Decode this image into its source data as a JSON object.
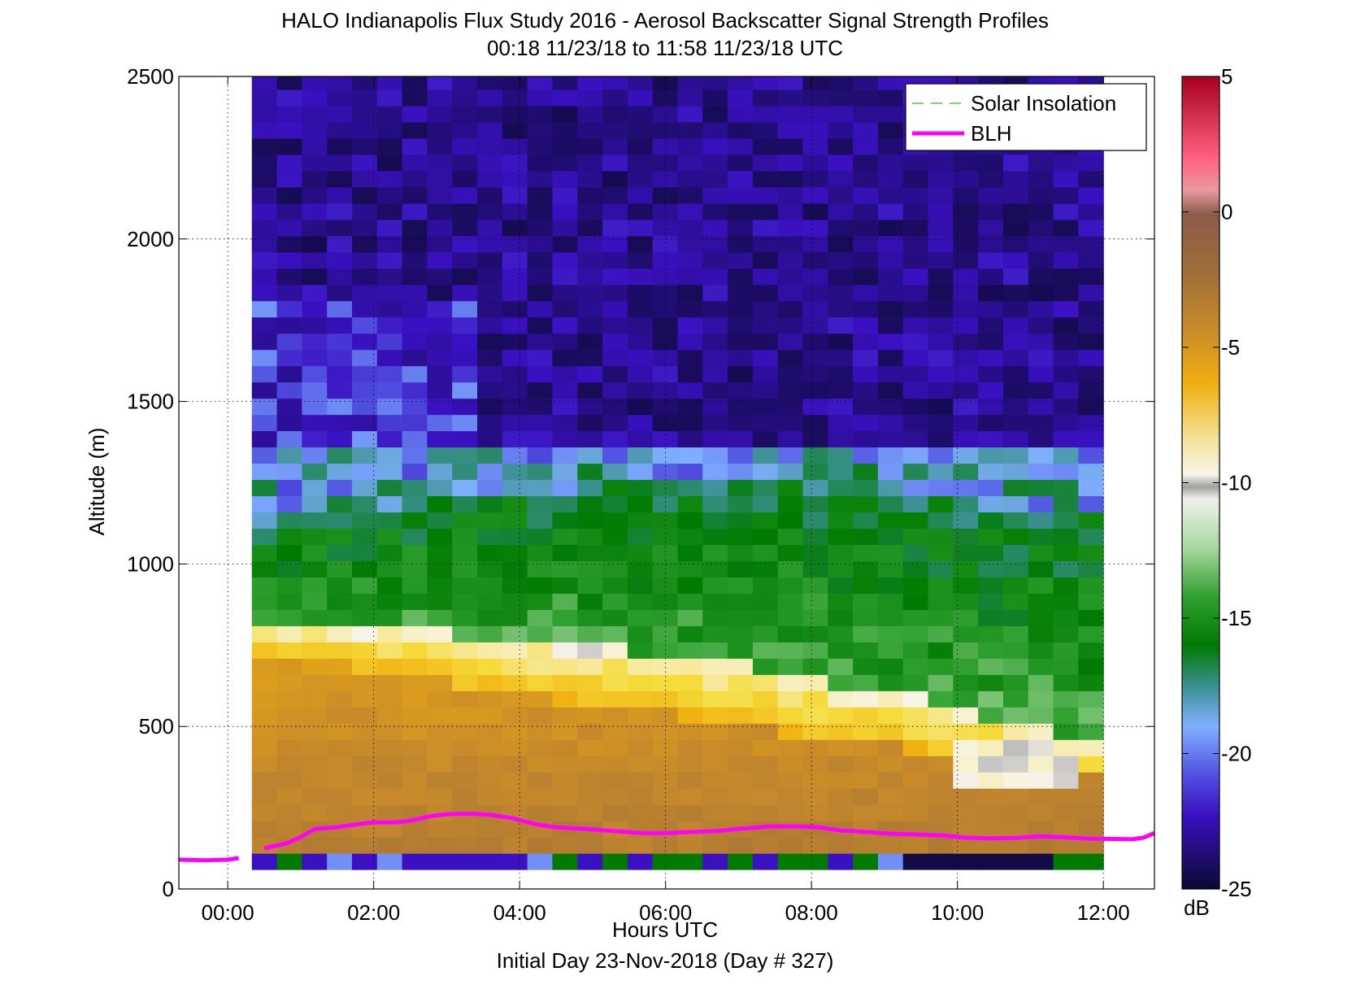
{
  "chart_data": {
    "type": "heatmap",
    "title": "HALO Indianapolis Flux Study 2016 - Aerosol Backscatter Signal Strength Profiles",
    "subtitle": "00:18 11/23/18 to 11:58 11/23/18  UTC",
    "xlabel": "Hours UTC",
    "xlabel_secondary": "Initial Day 23-Nov-2018 (Day # 327)",
    "ylabel": "Altitude (m)",
    "xlim": [
      -0.67,
      12.7
    ],
    "ylim": [
      0,
      2500
    ],
    "x_ticks": [
      0,
      2,
      4,
      6,
      8,
      10,
      12
    ],
    "x_tick_labels": [
      "00:00",
      "02:00",
      "04:00",
      "06:00",
      "08:00",
      "10:00",
      "12:00"
    ],
    "y_ticks": [
      0,
      500,
      1000,
      1500,
      2000,
      2500
    ],
    "y_tick_labels": [
      "0",
      "500",
      "1000",
      "1500",
      "2000",
      "2500"
    ],
    "grid": "dotted",
    "colorbar": {
      "label": "dB",
      "range": [
        -25,
        5
      ],
      "ticks": [
        5,
        0,
        -5,
        -10,
        -15,
        -20,
        -25
      ],
      "tick_labels": [
        "5",
        "0",
        "-5",
        "-10",
        "-15",
        "-20",
        "-25"
      ]
    },
    "legend": {
      "placement": "top-right",
      "entries": [
        {
          "label": "Solar Insolation",
          "style": "dashed",
          "color": "#33dd33"
        },
        {
          "label": "BLH",
          "style": "solid",
          "color": "#ff00ff"
        }
      ]
    },
    "heatmap": {
      "x_start": 0.33,
      "x_end": 12.0,
      "y_start": 60,
      "y_end": 2500,
      "n_cols": 34,
      "profile_breaks": [
        0.55,
        1.4,
        2.1,
        2.9,
        3.7,
        4.4,
        5.2,
        6.1,
        6.9,
        7.8,
        8.6,
        9.4,
        10.2,
        10.9,
        11.6
      ],
      "layer_tops_db": {
        "description": "approximate signal strength (dB) by altitude band",
        "bands": [
          {
            "top": 100,
            "db": -17
          },
          {
            "top": 300,
            "db": -2.5
          },
          {
            "top": 700,
            "db": -3.5
          },
          {
            "top": 800,
            "db": -7
          },
          {
            "top": 1100,
            "db": -15.5
          },
          {
            "top": 1350,
            "db": -19
          },
          {
            "top": 2500,
            "db": -23
          }
        ]
      }
    },
    "series": [
      {
        "name": "BLH",
        "x": [
          -0.67,
          -0.3,
          0.0,
          0.15
        ],
        "y": [
          90,
          88,
          90,
          95
        ]
      },
      {
        "name": "BLH",
        "x": [
          0.5,
          0.8,
          1.0,
          1.2,
          1.5,
          1.8,
          2.0,
          2.3,
          2.5,
          2.8,
          3.0,
          3.3,
          3.6,
          3.9,
          4.2,
          4.5,
          4.9,
          5.3,
          5.7,
          6.0,
          6.3,
          6.7,
          7.0,
          7.4,
          7.8,
          8.1,
          8.4,
          8.8,
          9.1,
          9.4,
          9.8,
          10.1,
          10.4,
          10.8,
          11.1,
          11.4,
          11.8,
          12.1,
          12.4,
          12.55,
          12.7
        ],
        "y": [
          125,
          140,
          160,
          185,
          190,
          200,
          205,
          205,
          210,
          225,
          230,
          232,
          228,
          218,
          200,
          190,
          185,
          178,
          172,
          172,
          175,
          178,
          185,
          192,
          193,
          190,
          180,
          175,
          170,
          168,
          165,
          158,
          156,
          157,
          162,
          160,
          155,
          154,
          153,
          158,
          172
        ]
      }
    ]
  }
}
